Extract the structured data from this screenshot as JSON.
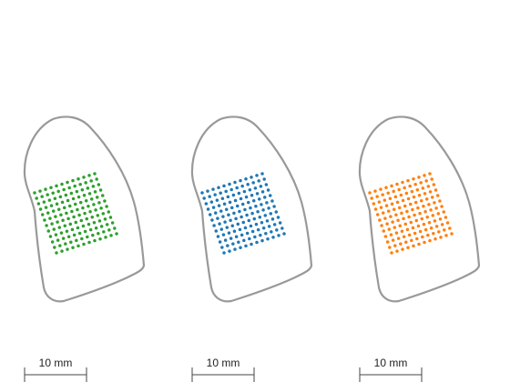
{
  "colors": {
    "outline": "#999999",
    "scale_bar": "#444444"
  },
  "panels": [
    {
      "name": "panel-1",
      "dot_color": "#2ca02c",
      "grid": {
        "rows": 12,
        "cols": 12
      },
      "scale_bar": {
        "label": "10 mm"
      }
    },
    {
      "name": "panel-2",
      "dot_color": "#1f77b4",
      "grid": {
        "rows": 12,
        "cols": 12
      },
      "scale_bar": {
        "label": "10 mm"
      }
    },
    {
      "name": "panel-3",
      "dot_color": "#ff7f0e",
      "grid": {
        "rows": 12,
        "cols": 12
      },
      "scale_bar": {
        "label": "10 mm"
      }
    }
  ]
}
